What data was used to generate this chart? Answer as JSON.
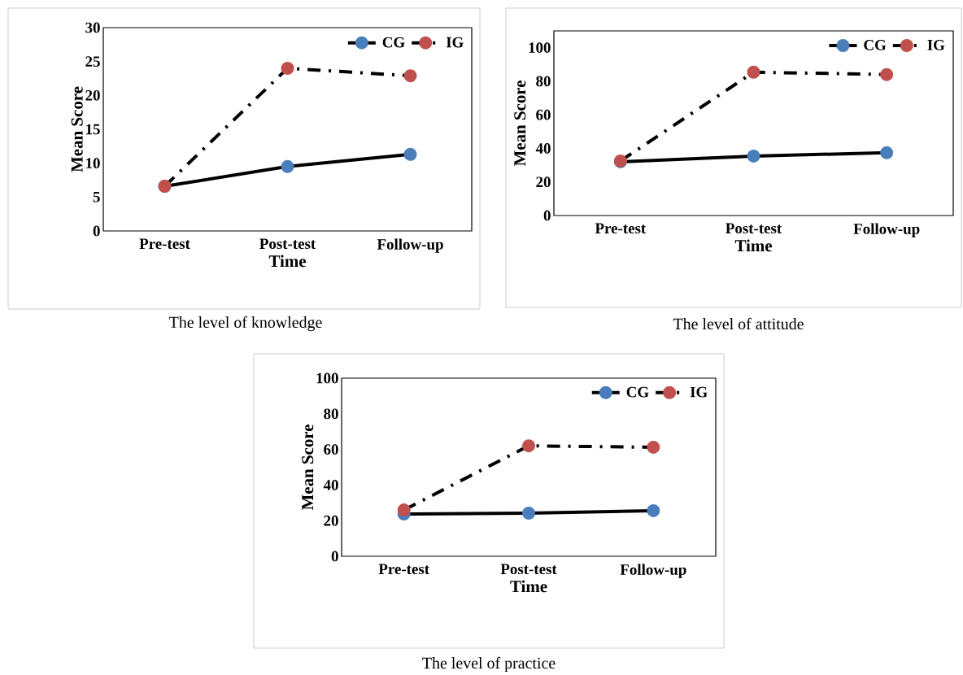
{
  "chart_data": [
    {
      "type": "line",
      "categories": [
        "Pre-test",
        "Post-test",
        "Follow-up"
      ],
      "xlabel": "Time",
      "ylabel": "Mean Score",
      "ylim": [
        0,
        30
      ],
      "yticks": [
        0,
        5,
        10,
        15,
        20,
        25,
        30
      ],
      "grid": false,
      "legend": "top right",
      "marker": "circle",
      "annotations": [
        "The level of knowledge"
      ],
      "series": [
        {
          "name": "CG",
          "color": "#4a7ebb",
          "line_style": "solid",
          "values": [
            6.6,
            9.5,
            11.3
          ]
        },
        {
          "name": "IG",
          "color": "#c0504d",
          "line_style": "dashdot",
          "values": [
            6.6,
            24.0,
            22.9
          ]
        }
      ]
    },
    {
      "type": "line",
      "categories": [
        "Pre-test",
        "Post-test",
        "Follow-up"
      ],
      "xlabel": "Time",
      "ylabel": "Mean Score",
      "ylim": [
        0,
        110
      ],
      "yticks": [
        0,
        20,
        40,
        60,
        80,
        100
      ],
      "grid": false,
      "legend": "top right",
      "marker": "circle",
      "annotations": [
        "The level of attitude"
      ],
      "series": [
        {
          "name": "CG",
          "color": "#4a7ebb",
          "line_style": "solid",
          "values": [
            32,
            35.4,
            37.4
          ]
        },
        {
          "name": "IG",
          "color": "#c0504d",
          "line_style": "dashdot",
          "values": [
            32.5,
            85.4,
            84
          ]
        }
      ]
    },
    {
      "type": "line",
      "categories": [
        "Pre-test",
        "Post-test",
        "Follow-up"
      ],
      "xlabel": "Time",
      "ylabel": "Mean Score",
      "ylim": [
        0,
        100
      ],
      "yticks": [
        0,
        20,
        40,
        60,
        80,
        100
      ],
      "grid": false,
      "legend": "top right",
      "marker": "circle",
      "annotations": [
        "The level of practice"
      ],
      "series": [
        {
          "name": "CG",
          "color": "#4a7ebb",
          "line_style": "solid",
          "values": [
            23.7,
            24.2,
            25.6
          ]
        },
        {
          "name": "IG",
          "color": "#c0504d",
          "line_style": "dashdot",
          "values": [
            26,
            62,
            61.2
          ]
        }
      ]
    }
  ]
}
